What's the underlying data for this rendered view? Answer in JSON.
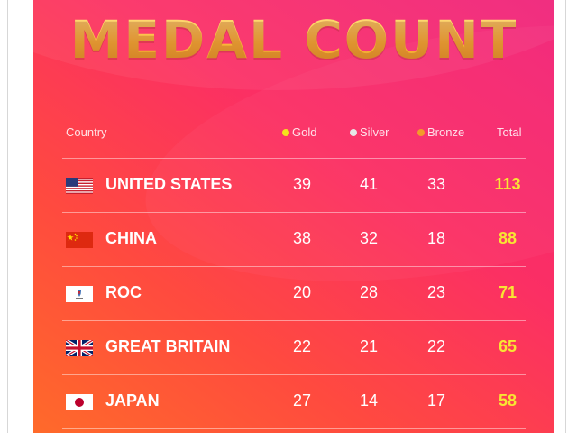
{
  "title": "MEDAL COUNT",
  "header": {
    "country": "Country",
    "gold": "Gold",
    "silver": "Silver",
    "bronze": "Bronze",
    "total": "Total"
  },
  "colors": {
    "gold_dot": "#f5e21c",
    "silver_dot": "#e6e6e6",
    "bronze_dot": "#f39a2a",
    "total_text": "#f8e533"
  },
  "rows": [
    {
      "country": "UNITED STATES",
      "flag": "us-flag-icon",
      "gold": "39",
      "silver": "41",
      "bronze": "33",
      "total": "113"
    },
    {
      "country": "CHINA",
      "flag": "china-flag-icon",
      "gold": "38",
      "silver": "32",
      "bronze": "18",
      "total": "88"
    },
    {
      "country": "ROC",
      "flag": "roc-flag-icon",
      "gold": "20",
      "silver": "28",
      "bronze": "23",
      "total": "71"
    },
    {
      "country": "GREAT BRITAIN",
      "flag": "uk-flag-icon",
      "gold": "22",
      "silver": "21",
      "bronze": "22",
      "total": "65"
    },
    {
      "country": "JAPAN",
      "flag": "japan-flag-icon",
      "gold": "27",
      "silver": "14",
      "bronze": "17",
      "total": "58"
    }
  ]
}
